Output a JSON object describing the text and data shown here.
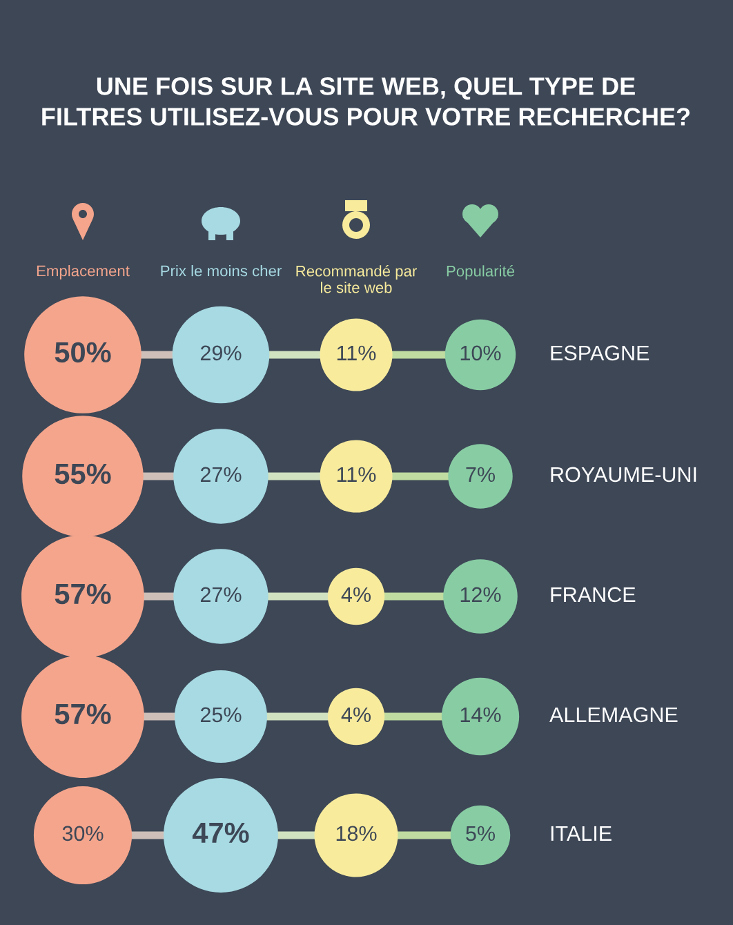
{
  "chart_data": {
    "type": "other",
    "title": "UNE FOIS SUR LA SITE WEB, QUEL TYPE DE FILTRES UTILISEZ-VOUS POUR VOTRE RECHERCHE?",
    "categories": [
      "Emplacement",
      "Prix le moins cher",
      "Recommandé par le site web",
      "Popularité"
    ],
    "colors": [
      "#f4a58c",
      "#a7dae3",
      "#f8eb9c",
      "#88cca3"
    ],
    "series": [
      {
        "name": "ESPAGNE",
        "colors": [
          "#f4a58c",
          "#a7dae3",
          "#f8eb9c",
          "#88cca3"
        ],
        "values": [
          50,
          29,
          11,
          10
        ],
        "value_labels": [
          "50%",
          "29%",
          "11%",
          "10%"
        ]
      },
      {
        "name": "ROYAUME-UNI",
        "colors": [
          "#f4a58c",
          "#a7dae3",
          "#f8eb9c",
          "#88cca3"
        ],
        "values": [
          55,
          27,
          11,
          7
        ],
        "value_labels": [
          "55%",
          "27%",
          "11%",
          "7%"
        ]
      },
      {
        "name": "FRANCE",
        "colors": [
          "#f4a58c",
          "#a7dae3",
          "#f8eb9c",
          "#88cca3"
        ],
        "values": [
          57,
          27,
          4,
          12
        ],
        "value_labels": [
          "57%",
          "27%",
          "4%",
          "12%"
        ]
      },
      {
        "name": "ALLEMAGNE",
        "colors": [
          "#f4a58c",
          "#a7dae3",
          "#f8eb9c",
          "#88cca3"
        ],
        "values": [
          57,
          25,
          4,
          14
        ],
        "value_labels": [
          "57%",
          "25%",
          "4%",
          "14%"
        ]
      },
      {
        "name": "ITALIE",
        "colors": [
          "#f4a58c",
          "#a7dae3",
          "#f8eb9c",
          "#88cca3"
        ],
        "values": [
          30,
          47,
          18,
          5
        ],
        "value_labels": [
          "30%",
          "47%",
          "18%",
          "5%"
        ]
      }
    ]
  }
}
